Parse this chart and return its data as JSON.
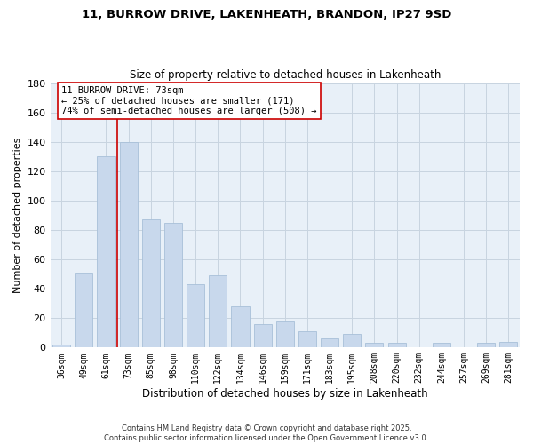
{
  "title": "11, BURROW DRIVE, LAKENHEATH, BRANDON, IP27 9SD",
  "subtitle": "Size of property relative to detached houses in Lakenheath",
  "xlabel": "Distribution of detached houses by size in Lakenheath",
  "ylabel": "Number of detached properties",
  "categories": [
    "36sqm",
    "49sqm",
    "61sqm",
    "73sqm",
    "85sqm",
    "98sqm",
    "110sqm",
    "122sqm",
    "134sqm",
    "146sqm",
    "159sqm",
    "171sqm",
    "183sqm",
    "195sqm",
    "208sqm",
    "220sqm",
    "232sqm",
    "244sqm",
    "257sqm",
    "269sqm",
    "281sqm"
  ],
  "values": [
    2,
    51,
    130,
    140,
    87,
    85,
    43,
    49,
    28,
    16,
    18,
    11,
    6,
    9,
    3,
    3,
    0,
    3,
    0,
    3,
    4
  ],
  "bar_color": "#c8d8ec",
  "bar_edge_color": "#a8c0d8",
  "vline_index": 3,
  "vline_color": "#cc0000",
  "annotation_title": "11 BURROW DRIVE: 73sqm",
  "annotation_line2": "← 25% of detached houses are smaller (171)",
  "annotation_line3": "74% of semi-detached houses are larger (508) →",
  "annotation_box_facecolor": "#ffffff",
  "annotation_box_edgecolor": "#cc0000",
  "ylim": [
    0,
    180
  ],
  "yticks": [
    0,
    20,
    40,
    60,
    80,
    100,
    120,
    140,
    160,
    180
  ],
  "plot_bg_color": "#e8f0f8",
  "fig_bg_color": "#ffffff",
  "grid_color": "#c8d4e0",
  "footer_line1": "Contains HM Land Registry data © Crown copyright and database right 2025.",
  "footer_line2": "Contains public sector information licensed under the Open Government Licence v3.0."
}
